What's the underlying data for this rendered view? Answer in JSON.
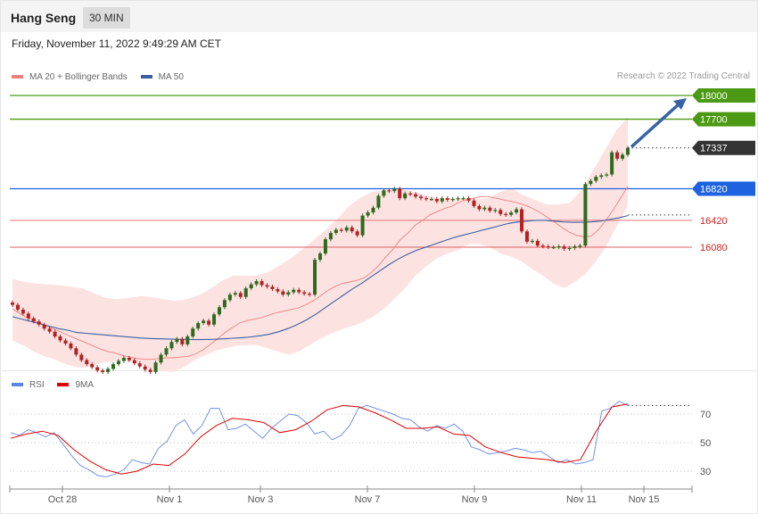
{
  "header": {
    "title": "Hang Seng",
    "timeframe": "30 MIN",
    "datetime": "Friday, November 11, 2022 9:49:29 AM CET"
  },
  "credit": "Research © 2022 Trading Central",
  "legend": [
    {
      "label": "MA 20 + Bollinger Bands",
      "color": "#f08080"
    },
    {
      "label": "MA 50",
      "color": "#3a5f9e"
    }
  ],
  "rsi_legend": [
    {
      "label": "RSI",
      "color": "#5b86e5"
    },
    {
      "label": "9MA",
      "color": "#e00000"
    }
  ],
  "colors": {
    "green_level": "#4c9a13",
    "blue_level": "#1f62e0",
    "red_level": "#e06060",
    "price_tag": "#333333",
    "up_candle": "#2e6b1f",
    "down_candle": "#b22222",
    "band_fill": "#fde2e2",
    "ma20": "#f08080",
    "ma50": "#3a5f9e",
    "arrow": "#3763a6"
  },
  "chart_data": [
    {
      "type": "candlestick",
      "title": "Hang Seng",
      "timeframe": "30 MIN",
      "x_ticks": [
        "Oct 28",
        "Nov 1",
        "Nov 3",
        "Nov 7",
        "Nov 9",
        "Nov 11",
        "Nov 15"
      ],
      "ylim": [
        14300,
        18150
      ],
      "last_price": 17337,
      "levels": [
        {
          "value": 18000,
          "label": "18000",
          "type": "resistance"
        },
        {
          "value": 17700,
          "label": "17700",
          "type": "resistance"
        },
        {
          "value": 16820,
          "label": "16820",
          "type": "pivot"
        },
        {
          "value": 16420,
          "label": "16420",
          "type": "support"
        },
        {
          "value": 16080,
          "label": "16080",
          "type": "support"
        }
      ],
      "projection": {
        "from": 17337,
        "to": 18000
      },
      "closes": [
        15350,
        15290,
        15240,
        15180,
        15140,
        15100,
        15050,
        15010,
        14950,
        14900,
        14860,
        14800,
        14720,
        14650,
        14600,
        14560,
        14520,
        14500,
        14540,
        14600,
        14640,
        14680,
        14650,
        14610,
        14570,
        14530,
        14500,
        14620,
        14720,
        14800,
        14880,
        14920,
        14850,
        14950,
        15050,
        15120,
        15150,
        15100,
        15230,
        15320,
        15410,
        15480,
        15500,
        15450,
        15560,
        15610,
        15650,
        15600,
        15580,
        15550,
        15520,
        15480,
        15510,
        15540,
        15510,
        15490,
        15480,
        15920,
        16000,
        16180,
        16260,
        16300,
        16290,
        16330,
        16280,
        16230,
        16480,
        16520,
        16580,
        16730,
        16800,
        16790,
        16820,
        16700,
        16760,
        16750,
        16720,
        16700,
        16690,
        16690,
        16660,
        16700,
        16680,
        16690,
        16700,
        16700,
        16670,
        16600,
        16560,
        16580,
        16540,
        16550,
        16500,
        16490,
        16520,
        16560,
        16280,
        16150,
        16160,
        16100,
        16090,
        16080,
        16080,
        16090,
        16060,
        16070,
        16090,
        16100,
        16880,
        16920,
        16970,
        16990,
        17000,
        17280,
        17200,
        17250,
        17337
      ],
      "ma20": [
        15300,
        15240,
        15190,
        15150,
        15110,
        15070,
        15030,
        14990,
        14950,
        14910,
        14870,
        14830,
        14790,
        14760,
        14740,
        14710,
        14690,
        14670,
        14660,
        14660,
        14670,
        14680,
        14680,
        14690,
        14700,
        14730,
        14780,
        14850,
        14920,
        15000,
        15060,
        15120,
        15150,
        15170,
        15190,
        15220,
        15250,
        15270,
        15290,
        15310,
        15350,
        15400,
        15460,
        15530,
        15580,
        15620,
        15640,
        15660,
        15690,
        15760,
        15850,
        15960,
        16060,
        16180,
        16260,
        16360,
        16420,
        16490,
        16530,
        16570,
        16600,
        16650,
        16680,
        16700,
        16720,
        16720,
        16700,
        16680,
        16660,
        16640,
        16610,
        16570,
        16520,
        16460,
        16400,
        16330,
        16270,
        16230,
        16210,
        16220,
        16300,
        16420,
        16550,
        16700,
        16850
      ],
      "bb_upper": [
        15680,
        15640,
        15620,
        15610,
        15600,
        15580,
        15560,
        15500,
        15440,
        15420,
        15440,
        15460,
        15450,
        15420,
        15400,
        15420,
        15470,
        15550,
        15650,
        15720,
        15720,
        15720,
        15760,
        15850,
        15940,
        16060,
        16180,
        16300,
        16440,
        16600,
        16710,
        16780,
        16800,
        16810,
        16800,
        16770,
        16720,
        16700,
        16700,
        16700,
        16690,
        16700,
        16780,
        16820,
        16740,
        16680,
        16620,
        16620,
        16640,
        16800,
        17050,
        17300,
        17560,
        17720
      ],
      "bb_lower": [
        14900,
        14840,
        14760,
        14700,
        14660,
        14600,
        14560,
        14560,
        14600,
        14630,
        14640,
        14640,
        14600,
        14540,
        14520,
        14500,
        14550,
        14640,
        14700,
        14760,
        14800,
        14830,
        14840,
        14840,
        14800,
        14760,
        14720,
        14760,
        14840,
        14920,
        14980,
        15040,
        15080,
        15130,
        15200,
        15300,
        15430,
        15560,
        15720,
        15840,
        15940,
        16000,
        16040,
        16120,
        16120,
        16080,
        16000,
        15960,
        15900,
        15800,
        15720,
        15620,
        15560,
        15640,
        15740,
        15900,
        16100,
        16360,
        16600
      ],
      "ma50": [
        15200,
        15170,
        15140,
        15110,
        15080,
        15050,
        15030,
        15000,
        14990,
        14980,
        14970,
        14960,
        14950,
        14940,
        14930,
        14925,
        14920,
        14918,
        14915,
        14912,
        14910,
        14912,
        14915,
        14920,
        14928,
        14935,
        14945,
        14960,
        14980,
        15010,
        15050,
        15100,
        15160,
        15230,
        15310,
        15390,
        15470,
        15550,
        15620,
        15700,
        15780,
        15860,
        15930,
        15990,
        16040,
        16080,
        16120,
        16160,
        16200,
        16230,
        16260,
        16290,
        16320,
        16350,
        16380,
        16400,
        16410,
        16420,
        16420,
        16410,
        16400,
        16395,
        16395,
        16400,
        16410,
        16430,
        16450,
        16480
      ],
      "rsi": {
        "ylim": [
          15,
          85
        ],
        "ticks": [
          30,
          50,
          70
        ],
        "rsi_values": [
          57,
          55,
          59,
          57,
          54,
          57,
          49,
          41,
          34,
          31,
          27,
          26,
          28,
          31,
          38,
          36,
          35,
          46,
          51,
          62,
          66,
          56,
          62,
          74,
          74,
          59,
          60,
          63,
          58,
          53,
          60,
          65,
          70,
          69,
          64,
          56,
          58,
          52,
          55,
          62,
          74,
          76,
          74,
          72,
          70,
          67,
          66,
          61,
          58,
          62,
          60,
          63,
          58,
          47,
          45,
          42,
          43,
          44,
          46,
          45,
          43,
          44,
          40,
          36,
          38,
          35,
          36,
          38,
          72,
          74,
          79,
          76
        ],
        "ma_values": [
          53,
          56,
          58,
          55,
          45,
          37,
          31,
          28,
          30,
          35,
          34,
          42,
          54,
          62,
          67,
          66,
          64,
          57,
          59,
          65,
          73,
          76,
          75,
          71,
          66,
          60,
          60,
          61,
          56,
          55,
          47,
          43,
          40,
          39,
          38,
          36,
          38,
          58,
          75,
          77
        ]
      }
    }
  ]
}
